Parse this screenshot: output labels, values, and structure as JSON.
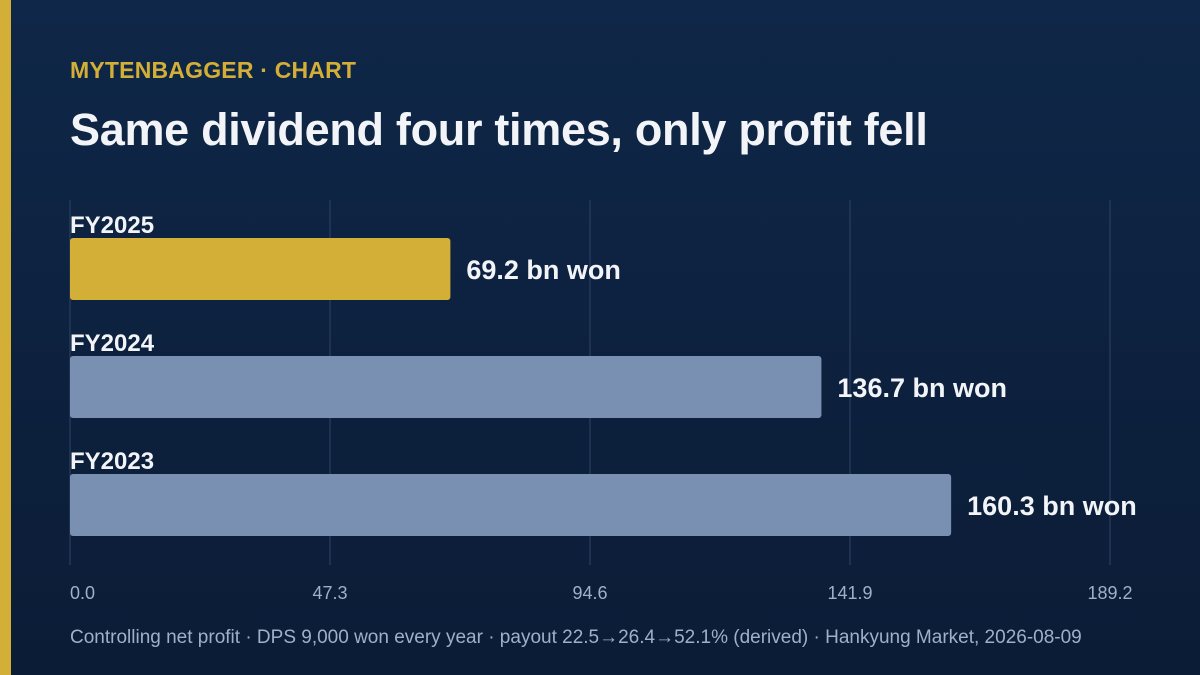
{
  "header": {
    "kicker": "MYTENBAGGER · CHART",
    "headline": "Same dividend four times, only profit fell"
  },
  "chart_data": {
    "type": "bar",
    "orientation": "horizontal",
    "categories": [
      "FY2025",
      "FY2024",
      "FY2023"
    ],
    "values": [
      69.2,
      136.7,
      160.3
    ],
    "value_labels": [
      "69.2 bn won",
      "136.7 bn won",
      "160.3 bn won"
    ],
    "unit": "bn won",
    "xlim": [
      0,
      189.2
    ],
    "xticks": [
      "0.0",
      "47.3",
      "94.6",
      "141.9",
      "189.2"
    ],
    "grid": true,
    "colors": {
      "highlight": "#d4af37",
      "default": "#7990b3"
    },
    "highlight_index": 0
  },
  "footer": {
    "note": "Controlling net profit · DPS 9,000 won every year · payout 22.5→26.4→52.1% (derived) · Hankyung Market, 2026-08-09"
  }
}
